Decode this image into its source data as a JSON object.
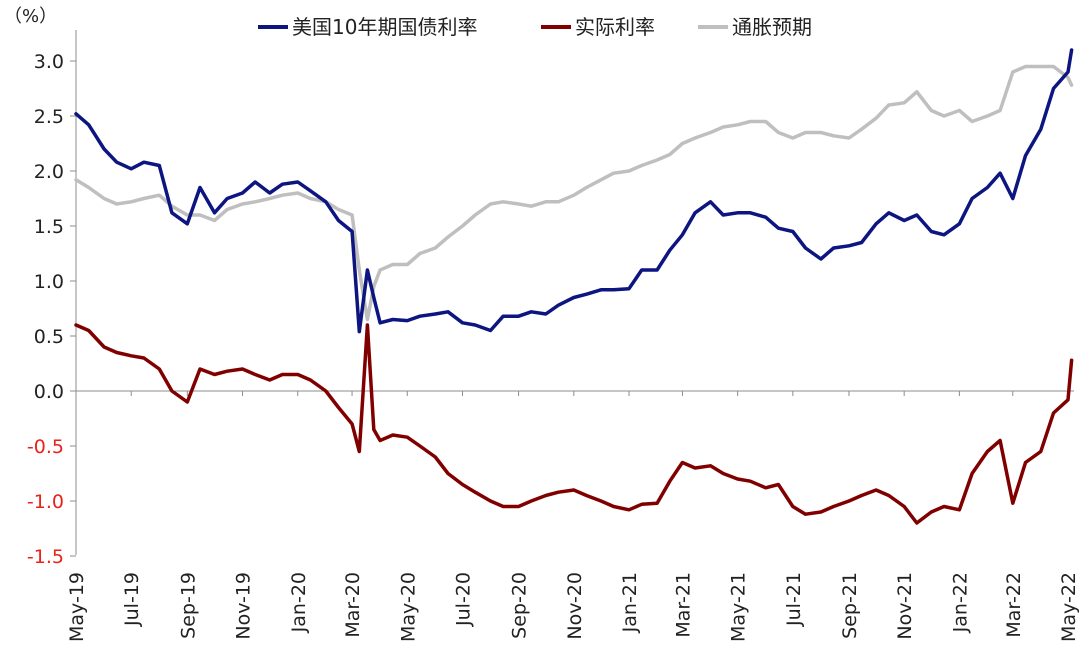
{
  "chart_data": {
    "type": "line",
    "unit_label": "（%）",
    "ylim": [
      -1.5,
      3.2
    ],
    "yticks": [
      3.0,
      2.5,
      2.0,
      1.5,
      1.0,
      0.5,
      0.0,
      -0.5,
      -1.0,
      -1.5
    ],
    "ytick_labels": [
      "3.0",
      "2.5",
      "2.0",
      "1.5",
      "1.0",
      "0.5",
      "0.0",
      "-0.5",
      "-1.0",
      "-1.5"
    ],
    "xticks": [
      "May-19",
      "Jul-19",
      "Sep-19",
      "Nov-19",
      "Jan-20",
      "Mar-20",
      "May-20",
      "Jul-20",
      "Sep-20",
      "Nov-20",
      "Jan-21",
      "Mar-21",
      "May-21",
      "Jul-21",
      "Sep-21",
      "Nov-21",
      "Jan-22",
      "Mar-22",
      "May-22"
    ],
    "x": [
      "2019-05-01",
      "2019-05-15",
      "2019-06-01",
      "2019-06-15",
      "2019-07-01",
      "2019-07-15",
      "2019-08-01",
      "2019-08-15",
      "2019-09-01",
      "2019-09-15",
      "2019-10-01",
      "2019-10-15",
      "2019-11-01",
      "2019-11-15",
      "2019-12-01",
      "2019-12-15",
      "2020-01-01",
      "2020-01-15",
      "2020-02-01",
      "2020-02-15",
      "2020-03-01",
      "2020-03-09",
      "2020-03-18",
      "2020-03-25",
      "2020-04-01",
      "2020-04-15",
      "2020-05-01",
      "2020-05-15",
      "2020-06-01",
      "2020-06-15",
      "2020-07-01",
      "2020-07-15",
      "2020-08-01",
      "2020-08-15",
      "2020-09-01",
      "2020-09-15",
      "2020-10-01",
      "2020-10-15",
      "2020-11-01",
      "2020-11-15",
      "2020-12-01",
      "2020-12-15",
      "2021-01-01",
      "2021-01-15",
      "2021-02-01",
      "2021-02-15",
      "2021-03-01",
      "2021-03-15",
      "2021-04-01",
      "2021-04-15",
      "2021-05-01",
      "2021-05-15",
      "2021-06-01",
      "2021-06-15",
      "2021-07-01",
      "2021-07-15",
      "2021-08-01",
      "2021-08-15",
      "2021-09-01",
      "2021-09-15",
      "2021-10-01",
      "2021-10-15",
      "2021-11-01",
      "2021-11-15",
      "2021-12-01",
      "2021-12-15",
      "2022-01-01",
      "2022-01-15",
      "2022-02-01",
      "2022-02-15",
      "2022-03-01",
      "2022-03-15",
      "2022-04-01",
      "2022-04-15",
      "2022-05-01",
      "2022-05-05"
    ],
    "series": [
      {
        "name": "美国10年期国债利率",
        "color": "#0c1580",
        "values": [
          2.52,
          2.42,
          2.2,
          2.08,
          2.02,
          2.08,
          2.05,
          1.62,
          1.52,
          1.85,
          1.62,
          1.75,
          1.8,
          1.9,
          1.8,
          1.88,
          1.9,
          1.82,
          1.72,
          1.55,
          1.45,
          0.54,
          1.1,
          0.85,
          0.62,
          0.65,
          0.64,
          0.68,
          0.7,
          0.72,
          0.62,
          0.6,
          0.55,
          0.68,
          0.68,
          0.72,
          0.7,
          0.78,
          0.85,
          0.88,
          0.92,
          0.92,
          0.93,
          1.1,
          1.1,
          1.28,
          1.42,
          1.62,
          1.72,
          1.6,
          1.62,
          1.62,
          1.58,
          1.48,
          1.45,
          1.3,
          1.2,
          1.3,
          1.32,
          1.35,
          1.52,
          1.62,
          1.55,
          1.6,
          1.45,
          1.42,
          1.52,
          1.75,
          1.85,
          1.98,
          1.75,
          2.14,
          2.38,
          2.75,
          2.9,
          3.1
        ]
      },
      {
        "name": "实际利率",
        "color": "#800000",
        "values": [
          0.6,
          0.55,
          0.4,
          0.35,
          0.32,
          0.3,
          0.2,
          0.0,
          -0.1,
          0.2,
          0.15,
          0.18,
          0.2,
          0.15,
          0.1,
          0.15,
          0.15,
          0.1,
          0.0,
          -0.15,
          -0.3,
          -0.55,
          0.6,
          -0.35,
          -0.45,
          -0.4,
          -0.42,
          -0.5,
          -0.6,
          -0.75,
          -0.85,
          -0.92,
          -1.0,
          -1.05,
          -1.05,
          -1.0,
          -0.95,
          -0.92,
          -0.9,
          -0.95,
          -1.0,
          -1.05,
          -1.08,
          -1.03,
          -1.02,
          -0.82,
          -0.65,
          -0.7,
          -0.68,
          -0.75,
          -0.8,
          -0.82,
          -0.88,
          -0.85,
          -1.05,
          -1.12,
          -1.1,
          -1.05,
          -1.0,
          -0.95,
          -0.9,
          -0.95,
          -1.05,
          -1.2,
          -1.1,
          -1.05,
          -1.08,
          -0.75,
          -0.55,
          -0.45,
          -1.02,
          -0.65,
          -0.55,
          -0.2,
          -0.08,
          0.28
        ]
      },
      {
        "name": "通胀预期",
        "color": "#bfbfbf",
        "values": [
          1.92,
          1.85,
          1.75,
          1.7,
          1.72,
          1.75,
          1.78,
          1.68,
          1.6,
          1.6,
          1.55,
          1.65,
          1.7,
          1.72,
          1.75,
          1.78,
          1.8,
          1.75,
          1.72,
          1.65,
          1.6,
          1.1,
          0.65,
          0.95,
          1.1,
          1.15,
          1.15,
          1.25,
          1.3,
          1.4,
          1.5,
          1.6,
          1.7,
          1.72,
          1.7,
          1.68,
          1.72,
          1.72,
          1.78,
          1.85,
          1.92,
          1.98,
          2.0,
          2.05,
          2.1,
          2.15,
          2.25,
          2.3,
          2.35,
          2.4,
          2.42,
          2.45,
          2.45,
          2.35,
          2.3,
          2.35,
          2.35,
          2.32,
          2.3,
          2.38,
          2.48,
          2.6,
          2.62,
          2.72,
          2.55,
          2.5,
          2.55,
          2.45,
          2.5,
          2.55,
          2.9,
          2.95,
          2.95,
          2.95,
          2.85,
          2.78
        ]
      }
    ],
    "legend_position": "top-center",
    "grid": false
  }
}
